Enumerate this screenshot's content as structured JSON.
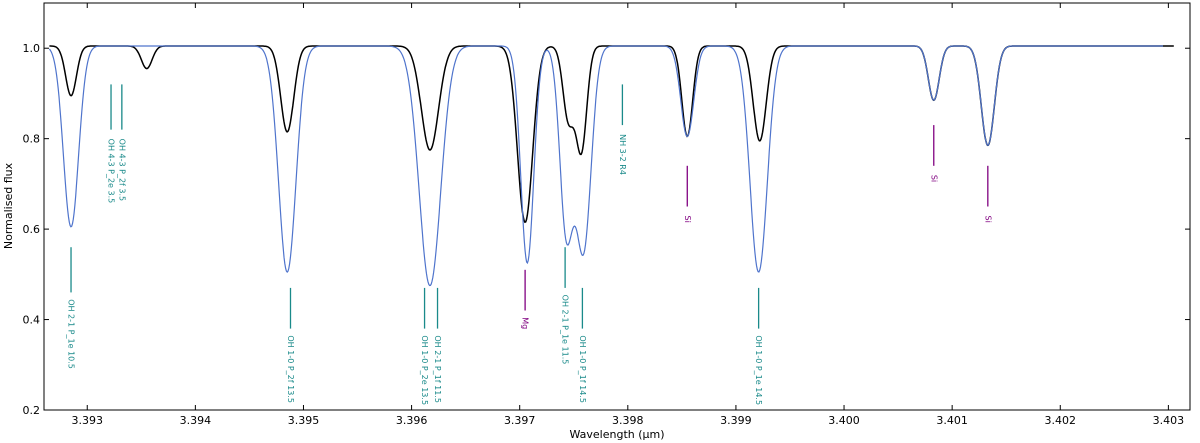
{
  "chart_data": {
    "type": "line",
    "title": "",
    "xlabel": "Wavelength (μm)",
    "ylabel": "Normalised flux",
    "xlim": [
      3.3926,
      3.4032
    ],
    "ylim": [
      0.2,
      1.1
    ],
    "xticks": [
      3.393,
      3.394,
      3.395,
      3.396,
      3.397,
      3.398,
      3.399,
      3.4,
      3.401,
      3.402,
      3.403
    ],
    "xtick_labels": [
      "3.393",
      "3.394",
      "3.395",
      "3.396",
      "3.397",
      "3.398",
      "3.399",
      "3.400",
      "3.401",
      "3.402",
      "3.403"
    ],
    "yticks": [
      0.2,
      0.4,
      0.6,
      0.8,
      1.0
    ],
    "ytick_labels": [
      "0.2",
      "0.4",
      "0.6",
      "0.8",
      "1.0"
    ],
    "grid": false,
    "continuum": 1.005,
    "series": [
      {
        "color": "#000000",
        "xrange": [
          3.39265,
          3.40305
        ],
        "lines": [
          {
            "x": 3.39285,
            "depth": 0.11,
            "width": 5e-05
          },
          {
            "x": 3.39355,
            "depth": 0.05,
            "width": 5e-05
          },
          {
            "x": 3.39485,
            "depth": 0.19,
            "width": 6e-05
          },
          {
            "x": 3.39617,
            "depth": 0.23,
            "width": 8e-05
          },
          {
            "x": 3.39705,
            "depth": 0.39,
            "width": 7e-05
          },
          {
            "x": 3.39745,
            "depth": 0.16,
            "width": 5e-05
          },
          {
            "x": 3.39757,
            "depth": 0.23,
            "width": 5e-05
          },
          {
            "x": 3.39855,
            "depth": 0.2,
            "width": 5e-05
          },
          {
            "x": 3.39922,
            "depth": 0.21,
            "width": 6e-05
          },
          {
            "x": 3.40083,
            "depth": 0.12,
            "width": 5e-05
          },
          {
            "x": 3.40133,
            "depth": 0.22,
            "width": 6e-05
          }
        ]
      },
      {
        "color": "#4f74cc",
        "xrange": [
          3.39265,
          3.40295
        ],
        "lines": [
          {
            "x": 3.39285,
            "depth": 0.4,
            "width": 7e-05
          },
          {
            "x": 3.39485,
            "depth": 0.5,
            "width": 8e-05
          },
          {
            "x": 3.39617,
            "depth": 0.53,
            "width": 0.0001
          },
          {
            "x": 3.39707,
            "depth": 0.48,
            "width": 6e-05
          },
          {
            "x": 3.39743,
            "depth": 0.4,
            "width": 6e-05
          },
          {
            "x": 3.39759,
            "depth": 0.45,
            "width": 7e-05
          },
          {
            "x": 3.39855,
            "depth": 0.2,
            "width": 6e-05
          },
          {
            "x": 3.39921,
            "depth": 0.5,
            "width": 8e-05
          },
          {
            "x": 3.40083,
            "depth": 0.12,
            "width": 5e-05
          },
          {
            "x": 3.40133,
            "depth": 0.22,
            "width": 6e-05
          }
        ]
      }
    ],
    "line_ids": [
      {
        "x": 3.39285,
        "y0": 0.46,
        "y1": 0.56,
        "label": "OH 2-1 P_1e 10.5",
        "label_y": 0.445,
        "color": "#1a8a8a"
      },
      {
        "x": 3.39322,
        "y0": 0.82,
        "y1": 0.92,
        "label": "OH 4-3 P_2e 3.5",
        "label_y": 0.8,
        "color": "#1a8a8a"
      },
      {
        "x": 3.39332,
        "y0": 0.82,
        "y1": 0.92,
        "label": "OH 4-3 P_2f 3.5",
        "label_y": 0.8,
        "color": "#1a8a8a"
      },
      {
        "x": 3.39488,
        "y0": 0.38,
        "y1": 0.47,
        "label": "OH 1-0 P_2f 13.5",
        "label_y": 0.365,
        "color": "#1a8a8a"
      },
      {
        "x": 3.39612,
        "y0": 0.38,
        "y1": 0.47,
        "label": "OH 1-0 P_2e 13.5",
        "label_y": 0.365,
        "color": "#1a8a8a"
      },
      {
        "x": 3.39624,
        "y0": 0.38,
        "y1": 0.47,
        "label": "OH 2-1 P_1f 11.5",
        "label_y": 0.365,
        "color": "#1a8a8a"
      },
      {
        "x": 3.39705,
        "y0": 0.42,
        "y1": 0.51,
        "label": "Mg",
        "label_y": 0.405,
        "color": "#800080"
      },
      {
        "x": 3.39742,
        "y0": 0.47,
        "y1": 0.56,
        "label": "OH 2-1 P_1e 11.5",
        "label_y": 0.455,
        "color": "#1a8a8a"
      },
      {
        "x": 3.39758,
        "y0": 0.38,
        "y1": 0.47,
        "label": "OH 1-0 P_1f 14.5",
        "label_y": 0.365,
        "color": "#1a8a8a"
      },
      {
        "x": 3.39795,
        "y0": 0.83,
        "y1": 0.92,
        "label": "NH 3-2 R4",
        "label_y": 0.81,
        "color": "#1a8a8a"
      },
      {
        "x": 3.39855,
        "y0": 0.65,
        "y1": 0.74,
        "label": "Si",
        "label_y": 0.63,
        "color": "#800080"
      },
      {
        "x": 3.39921,
        "y0": 0.38,
        "y1": 0.47,
        "label": "OH 1-0 P_1e 14.5",
        "label_y": 0.365,
        "color": "#1a8a8a"
      },
      {
        "x": 3.40083,
        "y0": 0.74,
        "y1": 0.83,
        "label": "Si",
        "label_y": 0.72,
        "color": "#800080"
      },
      {
        "x": 3.40133,
        "y0": 0.65,
        "y1": 0.74,
        "label": "Si",
        "label_y": 0.63,
        "color": "#800080"
      }
    ]
  }
}
